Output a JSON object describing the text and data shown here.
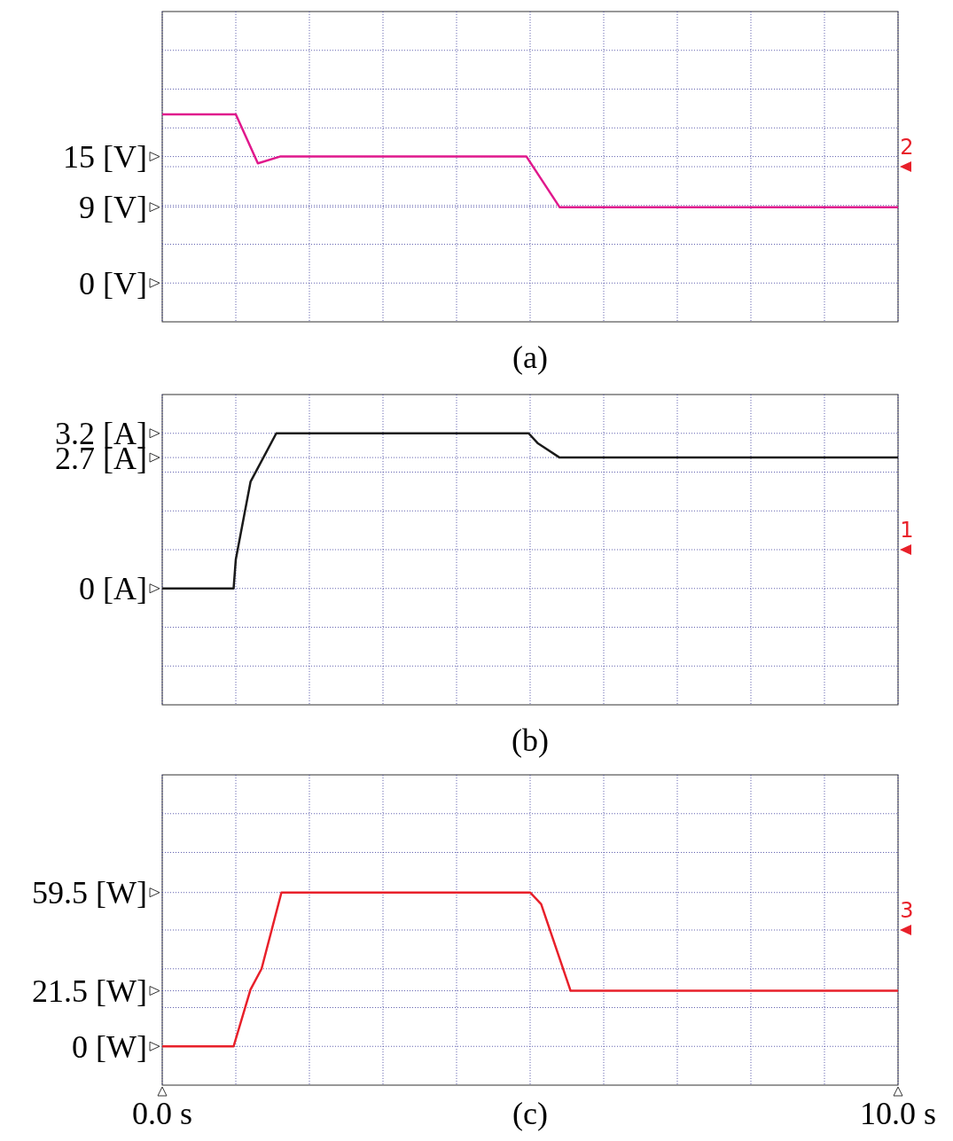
{
  "chart_data": [
    {
      "type": "line",
      "title": "(a)",
      "x": [
        0,
        1.0,
        1.3,
        1.6,
        4.95,
        5.4,
        10
      ],
      "series": [
        {
          "color": "#e0188c",
          "values": [
            20,
            20,
            14.2,
            15,
            15,
            9,
            9
          ]
        }
      ],
      "xlim": [
        0,
        10
      ],
      "xticks": [
        0,
        1,
        2,
        3,
        4,
        5,
        6,
        7,
        8,
        9,
        10
      ],
      "ylim": [
        -4.6,
        32.2
      ],
      "yticks": [
        {
          "value": 0,
          "label": "0 [V]"
        },
        {
          "value": 9,
          "label": "9 [V]"
        },
        {
          "value": 15,
          "label": "15 [V]"
        },
        {
          "value": 4.6,
          "label": null
        },
        {
          "value": 9.2,
          "label": null
        },
        {
          "value": 13.8,
          "label": null
        },
        {
          "value": 18.4,
          "label": null
        },
        {
          "value": 23,
          "label": null
        },
        {
          "value": 27.6,
          "label": null
        }
      ],
      "grid": true,
      "tick_labels": "y",
      "annotations": [
        "2"
      ]
    },
    {
      "type": "line",
      "title": "(b)",
      "x": [
        0,
        0.97,
        1.0,
        1.2,
        1.55,
        4.98,
        5.1,
        5.4,
        10
      ],
      "series": [
        {
          "color": "#1a1a1a",
          "values": [
            0,
            0,
            0.6,
            2.2,
            3.2,
            3.2,
            3.0,
            2.7,
            2.7
          ]
        }
      ],
      "xlim": [
        0,
        10
      ],
      "xticks": [
        0,
        1,
        2,
        3,
        4,
        5,
        6,
        7,
        8,
        9,
        10
      ],
      "ylim": [
        -2.4,
        4.0
      ],
      "yticks": [
        {
          "value": 0,
          "label": "0 [A]"
        },
        {
          "value": 2.7,
          "label": "2.7 [A]"
        },
        {
          "value": 3.2,
          "label": "3.2 [A]"
        },
        {
          "value": -1.6,
          "label": null
        },
        {
          "value": -0.8,
          "label": null
        },
        {
          "value": 0.8,
          "label": null
        },
        {
          "value": 1.6,
          "label": null
        },
        {
          "value": 2.4,
          "label": null
        }
      ],
      "grid": true,
      "tick_labels": "y",
      "annotations": [
        "1"
      ]
    },
    {
      "type": "line",
      "title": "(c)",
      "x": [
        0,
        0.97,
        1.2,
        1.35,
        1.62,
        5.0,
        5.15,
        5.55,
        10
      ],
      "series": [
        {
          "color": "#e8202a",
          "values": [
            0,
            0,
            22,
            30,
            59.5,
            59.5,
            55,
            21.5,
            21.5
          ]
        }
      ],
      "xlim": [
        0,
        10
      ],
      "xticks": [
        {
          "value": 0,
          "label": "0.0 s"
        },
        {
          "value": 1,
          "label": null
        },
        {
          "value": 2,
          "label": null
        },
        {
          "value": 3,
          "label": null
        },
        {
          "value": 4,
          "label": null
        },
        {
          "value": 5,
          "label": null
        },
        {
          "value": 6,
          "label": null
        },
        {
          "value": 7,
          "label": null
        },
        {
          "value": 8,
          "label": null
        },
        {
          "value": 9,
          "label": null
        },
        {
          "value": 10,
          "label": "10.0 s"
        }
      ],
      "ylim": [
        -15,
        105
      ],
      "yticks": [
        {
          "value": 0,
          "label": "0 [W]"
        },
        {
          "value": 21.5,
          "label": "21.5 [W]"
        },
        {
          "value": 59.5,
          "label": "59.5 [W]"
        },
        {
          "value": 15,
          "label": null
        },
        {
          "value": 30,
          "label": null
        },
        {
          "value": 45,
          "label": null
        },
        {
          "value": 75,
          "label": null
        },
        {
          "value": 90,
          "label": null
        }
      ],
      "grid": true,
      "annotations": [
        "3"
      ]
    }
  ]
}
